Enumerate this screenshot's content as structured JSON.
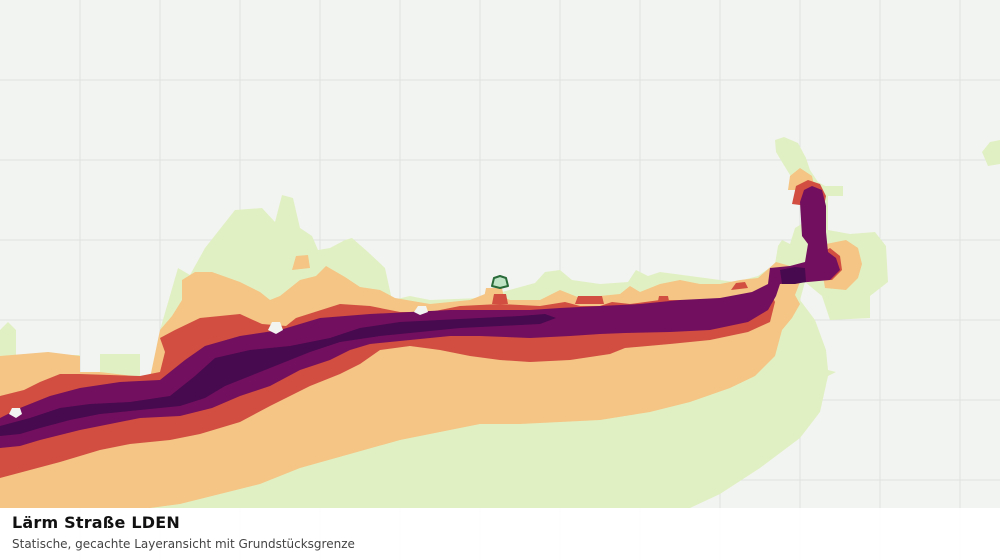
{
  "caption": {
    "title": "Lärm Straße LDEN",
    "subtitle": "Statische, gecachte Layeransicht mit Grundstücksgrenze"
  },
  "colors": {
    "background": "#f2f4f1",
    "grid": "#dfe2df",
    "noise_lowest": "#e1f0c3",
    "noise_low": "#f4c585",
    "noise_mid": "#d14e41",
    "noise_high": "#720f5e",
    "noise_highest": "#470a4e",
    "parcel_boundary": "#2a6b3a"
  }
}
